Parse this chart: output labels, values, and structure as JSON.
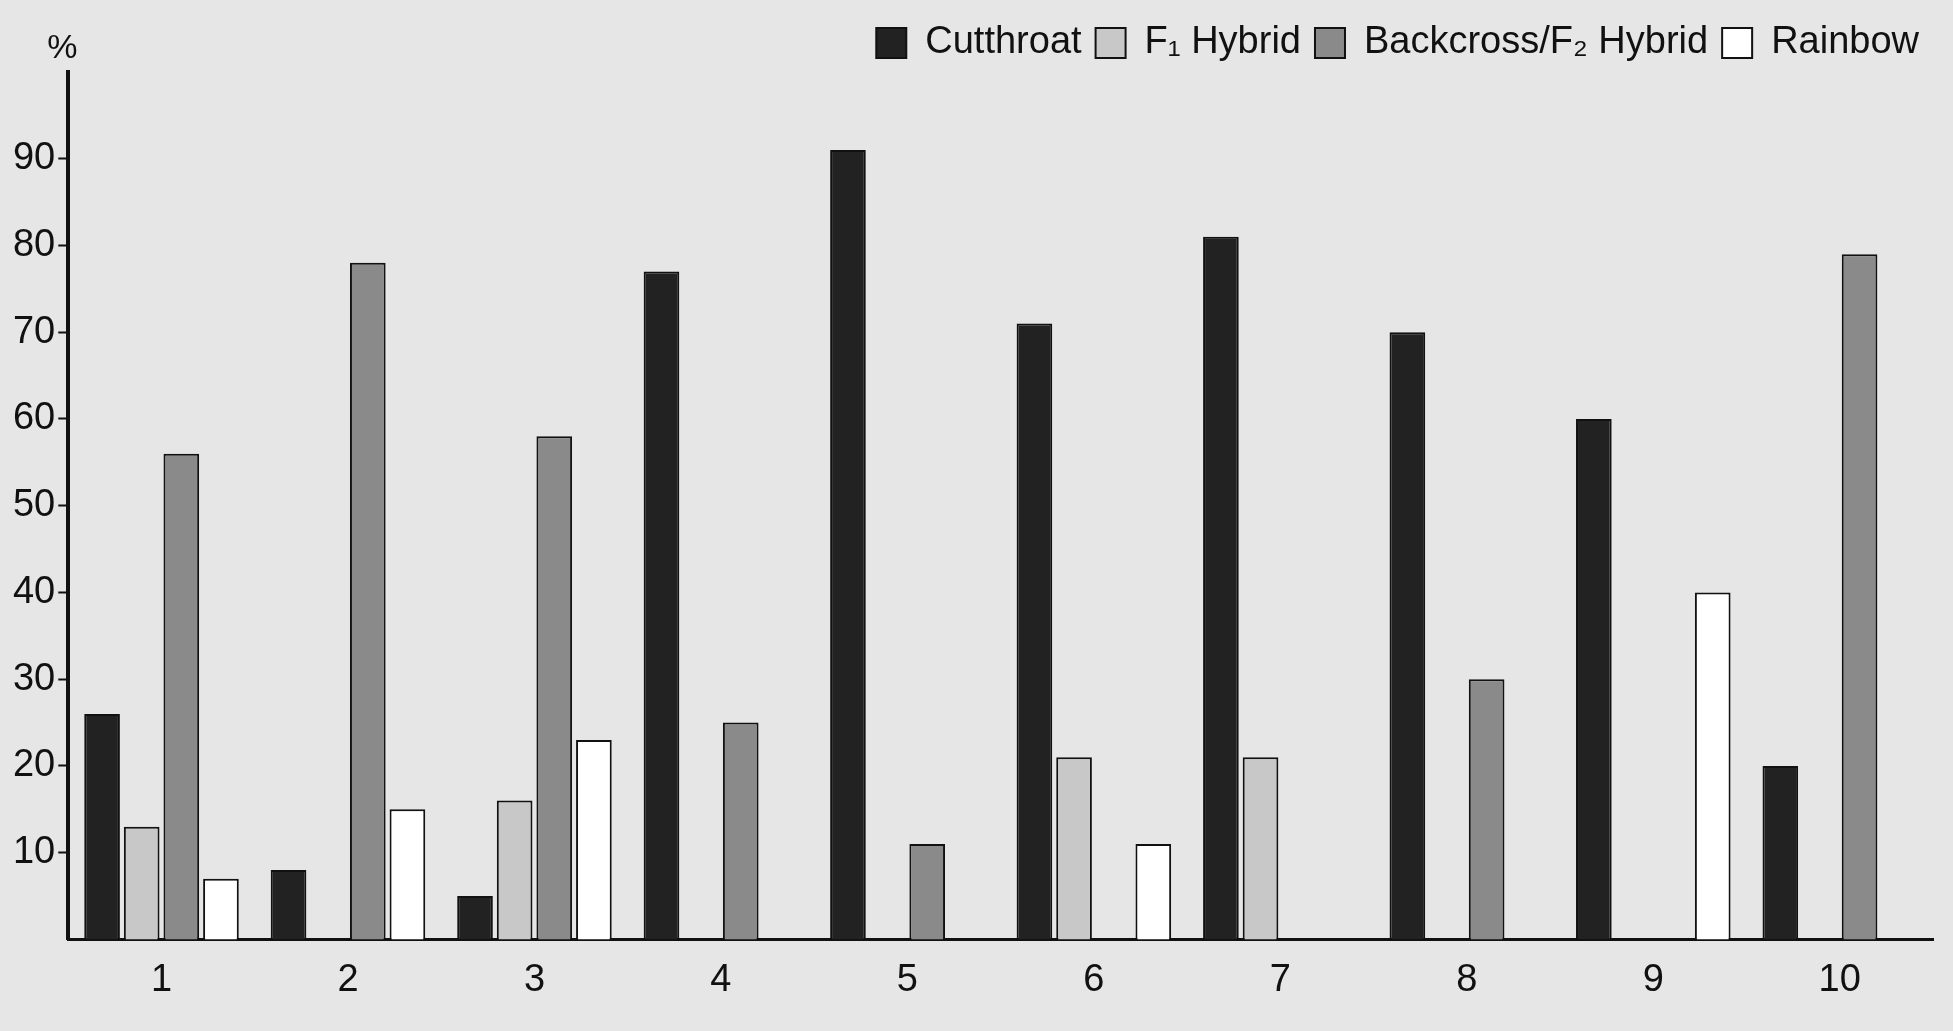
{
  "chart_data": {
    "type": "bar",
    "ylabel": "%",
    "categories": [
      "1",
      "2",
      "3",
      "4",
      "5",
      "6",
      "7",
      "8",
      "9",
      "10"
    ],
    "series": [
      {
        "name": "Cutthroat",
        "color": "#222222",
        "values": [
          26,
          8,
          5,
          77,
          91,
          71,
          81,
          70,
          60,
          20
        ]
      },
      {
        "name": "F₁ Hybrid",
        "color": "#c8c8c8",
        "values": [
          13,
          0,
          16,
          0,
          0,
          21,
          21,
          0,
          0,
          0
        ]
      },
      {
        "name": "Backcross/F₂ Hybrid",
        "color": "#8a8a8a",
        "values": [
          56,
          78,
          58,
          25,
          11,
          0,
          0,
          30,
          0,
          79
        ]
      },
      {
        "name": "Rainbow",
        "color": "#ffffff",
        "values": [
          7,
          15,
          23,
          0,
          0,
          11,
          0,
          0,
          40,
          0
        ]
      }
    ],
    "ylim": [
      0,
      100
    ],
    "yticks": [
      10,
      20,
      30,
      40,
      50,
      60,
      70,
      80,
      90
    ],
    "grid": false,
    "legend": "top right"
  }
}
